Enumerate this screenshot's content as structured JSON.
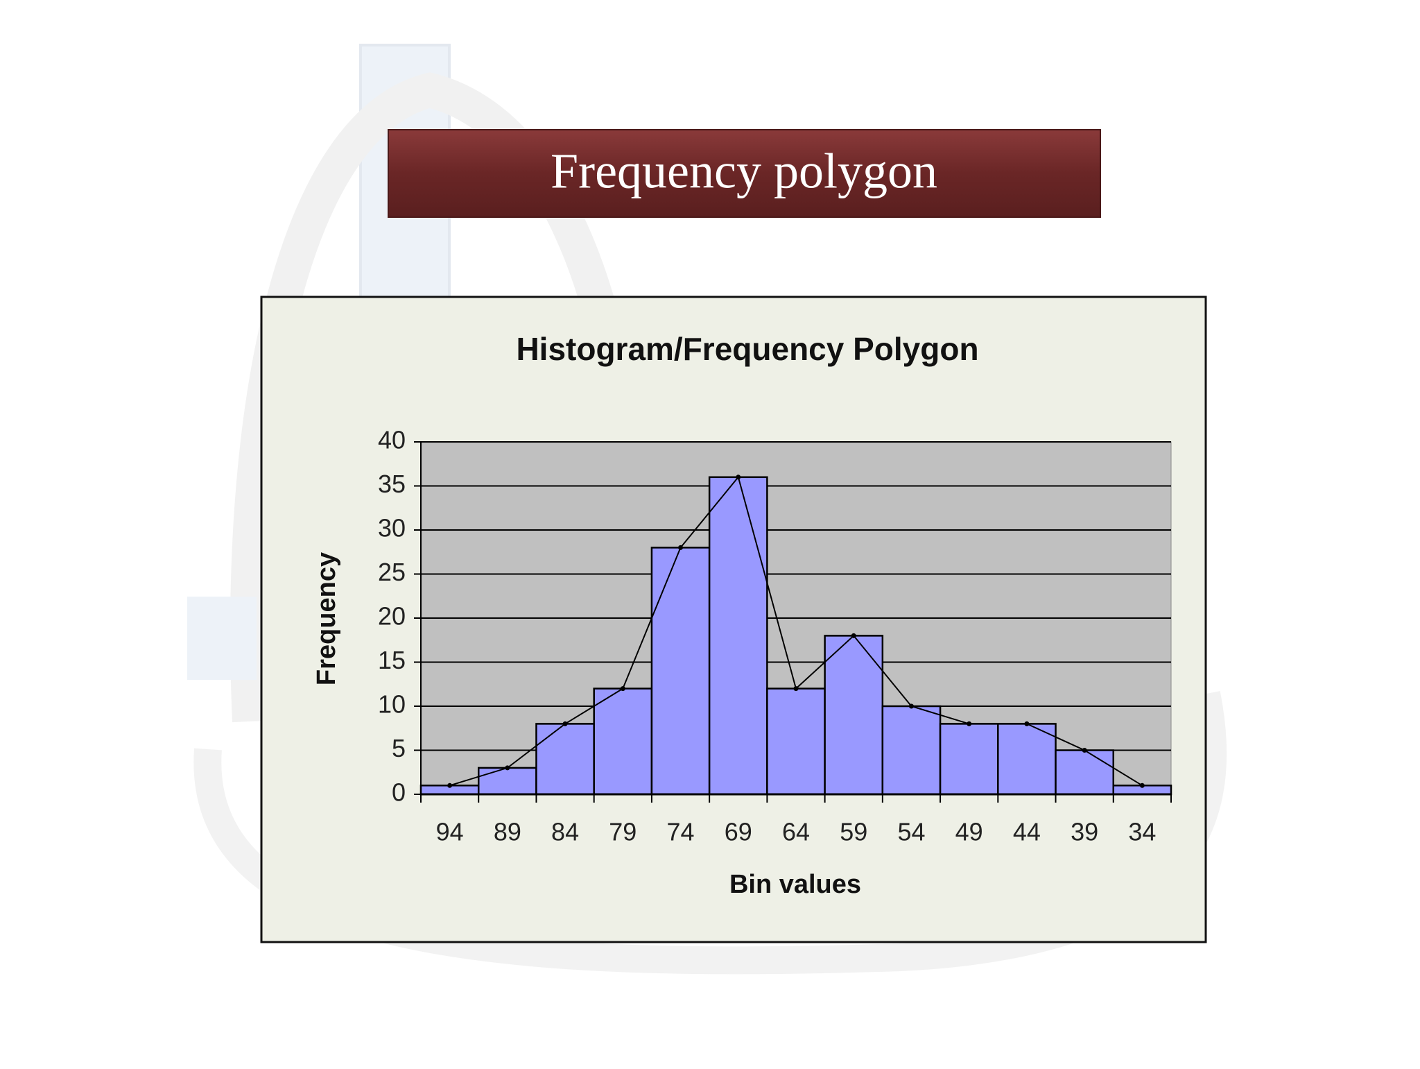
{
  "slide": {
    "title": "Frequency polygon"
  },
  "chart_data": {
    "type": "bar",
    "title": "Histogram/Frequency Polygon",
    "x_label": "Bin values",
    "y_label": "Frequency",
    "categories": [
      "94",
      "89",
      "84",
      "79",
      "74",
      "69",
      "64",
      "59",
      "54",
      "49",
      "44",
      "39",
      "34"
    ],
    "values": [
      1,
      3,
      8,
      12,
      28,
      36,
      12,
      18,
      10,
      8,
      8,
      5,
      1
    ],
    "color": "#9999ff",
    "polygon": true,
    "polygon_color": "#000000",
    "plot_background": "#c0c0c0",
    "ylim": [
      0,
      40
    ],
    "yticks": [
      0,
      5,
      10,
      15,
      20,
      25,
      30,
      35,
      40
    ],
    "grid": true
  }
}
